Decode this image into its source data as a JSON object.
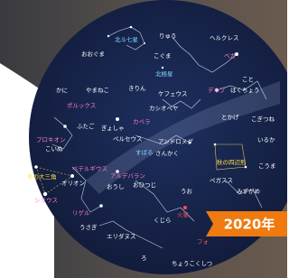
{
  "labels": [
    "北斗七星",
    "りゅう",
    "ヘルクレス",
    "おおぐま",
    "こぐま",
    "ベガ",
    "北極星",
    "こと",
    "かに",
    "やまねこ",
    "きりん",
    "ケフェウス",
    "デネブ",
    "はくちょう",
    "ポルックス",
    "カシオペヤ",
    "とかげ",
    "こぎつね",
    "ふたご",
    "カペラ",
    "プロキオン",
    "こいぬ",
    "ぎょしゃ",
    "ペルセウス",
    "アンドロメダ",
    "いるか",
    "すばる",
    "さんかく",
    "秋の四辺形",
    "こうま",
    "冬の大三角",
    "ベテルギウス",
    "オリオン",
    "アルデバラン",
    "おうし",
    "おひつじ",
    "ペガスス",
    "シリウス",
    "リゲル",
    "うお",
    "みずがめ",
    "火星",
    "うさぎ",
    "くじら",
    "エリダヌス",
    "フォ",
    "ろ",
    "ちょうこくしつ"
  ],
  "badge": "2020年"
}
